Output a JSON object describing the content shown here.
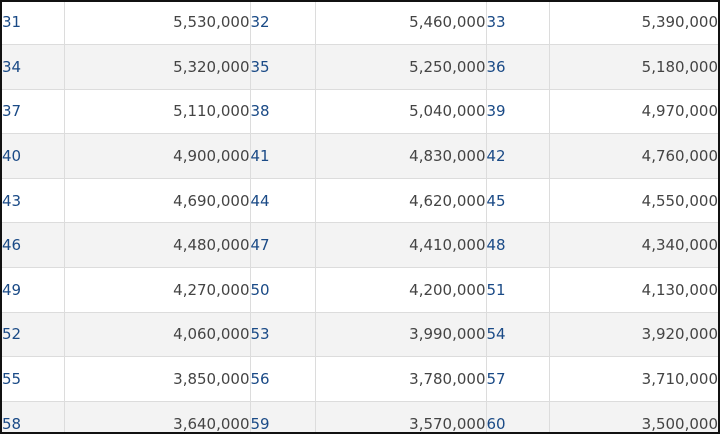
{
  "table": {
    "rows": [
      {
        "cells": [
          {
            "id": "31",
            "value": "5,530,000"
          },
          {
            "id": "32",
            "value": "5,460,000"
          },
          {
            "id": "33",
            "value": "5,390,000"
          }
        ]
      },
      {
        "cells": [
          {
            "id": "34",
            "value": "5,320,000"
          },
          {
            "id": "35",
            "value": "5,250,000"
          },
          {
            "id": "36",
            "value": "5,180,000"
          }
        ]
      },
      {
        "cells": [
          {
            "id": "37",
            "value": "5,110,000"
          },
          {
            "id": "38",
            "value": "5,040,000"
          },
          {
            "id": "39",
            "value": "4,970,000"
          }
        ]
      },
      {
        "cells": [
          {
            "id": "40",
            "value": "4,900,000"
          },
          {
            "id": "41",
            "value": "4,830,000"
          },
          {
            "id": "42",
            "value": "4,760,000"
          }
        ]
      },
      {
        "cells": [
          {
            "id": "43",
            "value": "4,690,000"
          },
          {
            "id": "44",
            "value": "4,620,000"
          },
          {
            "id": "45",
            "value": "4,550,000"
          }
        ]
      },
      {
        "cells": [
          {
            "id": "46",
            "value": "4,480,000"
          },
          {
            "id": "47",
            "value": "4,410,000"
          },
          {
            "id": "48",
            "value": "4,340,000"
          }
        ]
      },
      {
        "cells": [
          {
            "id": "49",
            "value": "4,270,000"
          },
          {
            "id": "50",
            "value": "4,200,000"
          },
          {
            "id": "51",
            "value": "4,130,000"
          }
        ]
      },
      {
        "cells": [
          {
            "id": "52",
            "value": "4,060,000"
          },
          {
            "id": "53",
            "value": "3,990,000"
          },
          {
            "id": "54",
            "value": "3,920,000"
          }
        ]
      },
      {
        "cells": [
          {
            "id": "55",
            "value": "3,850,000"
          },
          {
            "id": "56",
            "value": "3,780,000"
          },
          {
            "id": "57",
            "value": "3,710,000"
          }
        ]
      },
      {
        "cells": [
          {
            "id": "58",
            "value": "3,640,000"
          },
          {
            "id": "59",
            "value": "3,570,000"
          },
          {
            "id": "60",
            "value": "3,500,000"
          }
        ]
      }
    ]
  },
  "colors": {
    "id_text": "#1a4a86",
    "value_text": "#444444",
    "row_alt_bg": "#f3f3f3",
    "grid_line": "#dcdcdc",
    "frame_border": "#111111"
  }
}
